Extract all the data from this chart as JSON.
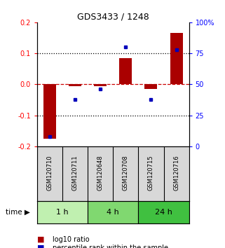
{
  "title": "GDS3433 / 1248",
  "samples": [
    "GSM120710",
    "GSM120711",
    "GSM120648",
    "GSM120708",
    "GSM120715",
    "GSM120716"
  ],
  "log10_ratio": [
    -0.175,
    -0.005,
    -0.005,
    0.085,
    -0.015,
    0.165
  ],
  "percentile_rank": [
    8,
    38,
    46,
    80,
    38,
    78
  ],
  "time_groups": [
    {
      "label": "1 h",
      "spans": [
        0,
        1
      ],
      "color": "#c0f0b0"
    },
    {
      "label": "4 h",
      "spans": [
        2,
        3
      ],
      "color": "#80d870"
    },
    {
      "label": "24 h",
      "spans": [
        4,
        5
      ],
      "color": "#40c040"
    }
  ],
  "ylim_left": [
    -0.2,
    0.2
  ],
  "ylim_right": [
    0,
    100
  ],
  "yticks_left": [
    -0.2,
    -0.1,
    0.0,
    0.1,
    0.2
  ],
  "yticks_right": [
    0,
    25,
    50,
    75,
    100
  ],
  "bar_color": "#aa0000",
  "dot_color": "#0000bb",
  "zero_line_color": "#cc0000",
  "dot_line_color": "#000000",
  "bg_color": "#ffffff",
  "panel_bg": "#d8d8d8"
}
